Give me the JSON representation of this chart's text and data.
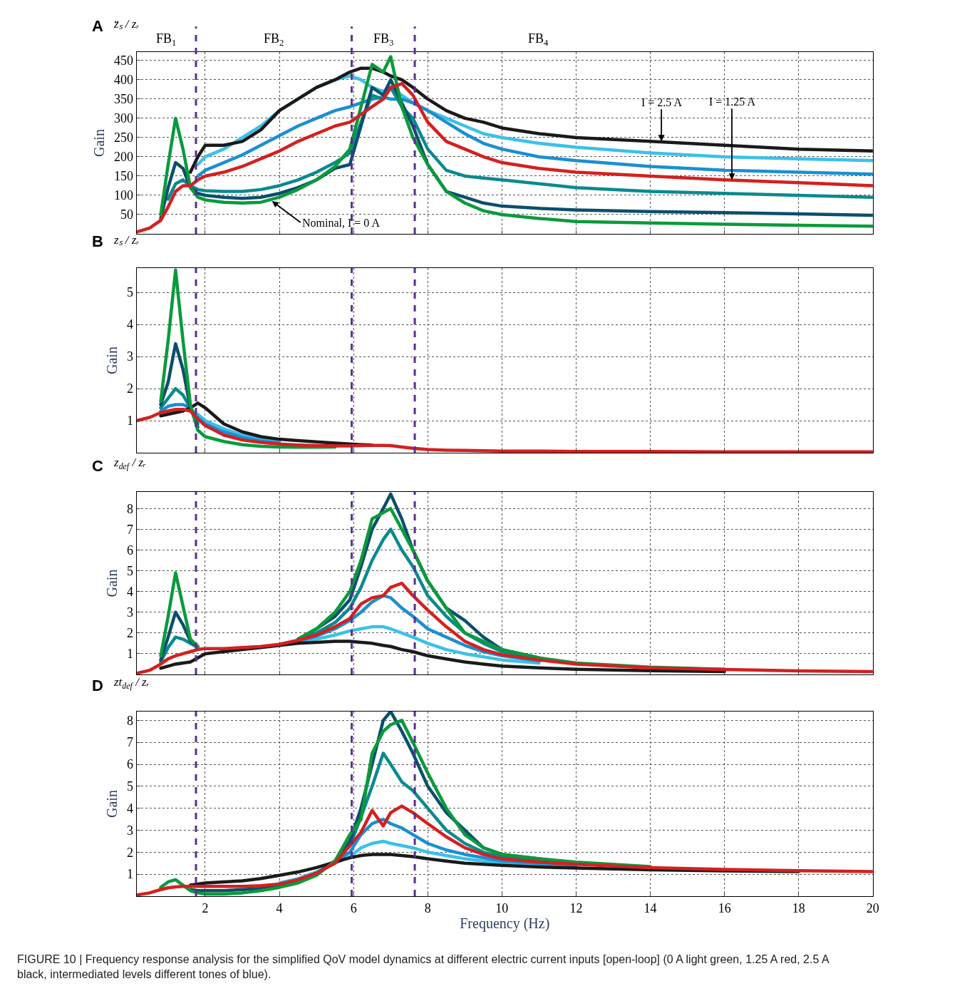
{
  "chart_data": [
    {
      "type": "line",
      "title": "A",
      "subtitle": "z̈ₛ / zᵣ",
      "ylabel": "Gain",
      "grid": true,
      "tick_labels": "y",
      "xlim": [
        0.15,
        20
      ],
      "xticks": [
        2,
        4,
        6,
        8,
        10,
        12,
        14,
        16,
        18,
        20
      ],
      "ylim": [
        0,
        472
      ],
      "yticks": [
        50,
        100,
        150,
        200,
        250,
        300,
        350,
        400,
        450
      ],
      "x": [
        0.15,
        0.5,
        0.8,
        1.0,
        1.2,
        1.4,
        1.6,
        1.8,
        2.0,
        2.5,
        3,
        3.5,
        4,
        4.5,
        5,
        5.5,
        5.9,
        6.2,
        6.5,
        6.8,
        7.0,
        7.3,
        7.6,
        8.0,
        8.5,
        9,
        9.5,
        10,
        11,
        12,
        14,
        16,
        18,
        20
      ],
      "series": [
        {
          "color": "#3cc0ea",
          "values": [
            null,
            null,
            null,
            null,
            null,
            null,
            null,
            180,
            200,
            220,
            250,
            280,
            320,
            350,
            380,
            400,
            410,
            400,
            380,
            370,
            380,
            360,
            340,
            320,
            300,
            280,
            260,
            250,
            235,
            225,
            210,
            200,
            195,
            190
          ]
        },
        {
          "color": "#1b8fd2",
          "values": [
            null,
            null,
            null,
            null,
            null,
            null,
            null,
            150,
            165,
            185,
            205,
            230,
            255,
            280,
            300,
            320,
            330,
            340,
            350,
            355,
            350,
            350,
            340,
            320,
            290,
            260,
            235,
            220,
            200,
            190,
            175,
            165,
            160,
            155
          ]
        },
        {
          "color": "#0a8a8f",
          "values": [
            null,
            null,
            null,
            90,
            130,
            140,
            125,
            115,
            112,
            110,
            110,
            115,
            125,
            140,
            160,
            185,
            210,
            290,
            360,
            350,
            380,
            330,
            300,
            220,
            165,
            150,
            145,
            140,
            130,
            120,
            110,
            105,
            100,
            95
          ]
        },
        {
          "color": "#0b4f6c",
          "values": [
            null,
            null,
            40,
            120,
            185,
            170,
            120,
            105,
            100,
            95,
            92,
            95,
            105,
            120,
            140,
            170,
            180,
            280,
            380,
            360,
            400,
            340,
            280,
            180,
            110,
            95,
            80,
            72,
            66,
            62,
            58,
            55,
            52,
            48
          ]
        },
        {
          "color": "#1a1a1a",
          "values": [
            null,
            null,
            null,
            null,
            null,
            null,
            160,
            200,
            230,
            230,
            240,
            270,
            320,
            350,
            380,
            400,
            420,
            430,
            430,
            420,
            410,
            400,
            380,
            350,
            320,
            300,
            290,
            275,
            260,
            250,
            240,
            230,
            220,
            215
          ]
        },
        {
          "color": "#0a9a3c",
          "values": [
            null,
            null,
            50,
            180,
            300,
            220,
            120,
            95,
            88,
            82,
            80,
            82,
            95,
            115,
            140,
            175,
            220,
            330,
            440,
            420,
            460,
            330,
            250,
            180,
            110,
            80,
            60,
            50,
            40,
            32,
            28,
            25,
            22,
            20
          ]
        },
        {
          "color": "#d42020",
          "values": [
            5,
            15,
            35,
            70,
            110,
            125,
            125,
            140,
            150,
            160,
            175,
            195,
            215,
            240,
            260,
            280,
            290,
            310,
            330,
            350,
            380,
            390,
            360,
            290,
            240,
            220,
            200,
            185,
            170,
            160,
            150,
            140,
            133,
            125
          ]
        }
      ],
      "ref_lines": [
        {
          "axis": "x",
          "value": 1.75,
          "color": "#5b2d91",
          "line_style": "dashed"
        },
        {
          "axis": "x",
          "value": 5.95,
          "color": "#5b2d91",
          "line_style": "dashed"
        },
        {
          "axis": "x",
          "value": 7.65,
          "color": "#5b2d91",
          "line_style": "dashed"
        }
      ],
      "annotations": [
        "FB$_{1}$",
        "FB$_{2}$",
        "FB$_{3}$",
        "FB$_{4}$",
        {
          "text": "I = 2.5 A",
          "x": 14.3,
          "y": 240
        },
        {
          "text": "I = 1.25 A",
          "x": 16.2,
          "y": 140
        },
        {
          "text": "Nominal, I = 0 A",
          "x": 3.8,
          "y": 85
        }
      ]
    },
    {
      "type": "line",
      "title": "B",
      "subtitle": "zₛ / zᵣ",
      "ylabel": "Gain",
      "grid": true,
      "tick_labels": "y",
      "xlim": [
        0.15,
        20
      ],
      "xticks": [
        2,
        4,
        6,
        8,
        10,
        12,
        14,
        16,
        18,
        20
      ],
      "ylim": [
        0,
        5.76
      ],
      "yticks": [
        1,
        2,
        3,
        4,
        5
      ],
      "x": [
        0.15,
        0.5,
        0.8,
        1.0,
        1.2,
        1.4,
        1.6,
        1.8,
        2.0,
        2.5,
        3,
        3.5,
        4,
        4.5,
        5,
        5.5,
        5.9,
        6.2,
        6.5,
        6.8,
        7.0,
        7.3,
        7.6,
        8.0,
        8.5,
        9,
        9.5,
        10,
        11,
        12,
        14,
        16,
        18,
        20
      ],
      "series": [
        {
          "color": "#3cc0ea",
          "values": [
            null,
            null,
            null,
            null,
            null,
            null,
            null,
            1.2,
            1.0,
            0.75,
            0.55,
            0.42,
            0.35,
            null,
            null,
            null,
            null,
            null,
            null,
            null,
            null,
            null,
            null,
            null,
            null,
            null,
            null,
            null,
            null,
            null,
            null,
            null,
            null,
            null
          ]
        },
        {
          "color": "#1b8fd2",
          "values": [
            null,
            null,
            1.3,
            1.45,
            1.5,
            1.5,
            1.4,
            1.1,
            0.9,
            0.65,
            0.48,
            0.37,
            0.3,
            null,
            null,
            null,
            null,
            null,
            null,
            null,
            null,
            null,
            null,
            null,
            null,
            null,
            null,
            null,
            null,
            null,
            null,
            null,
            null,
            null
          ]
        },
        {
          "color": "#0a8a8f",
          "values": [
            null,
            null,
            1.4,
            1.7,
            2.0,
            1.8,
            1.4,
            0.9,
            null,
            null,
            null,
            null,
            null,
            null,
            null,
            null,
            null,
            null,
            null,
            null,
            null,
            null,
            null,
            null,
            null,
            null,
            null,
            null,
            null,
            null,
            null,
            null,
            null,
            null
          ]
        },
        {
          "color": "#0b4f6c",
          "values": [
            null,
            null,
            1.5,
            2.2,
            3.4,
            2.6,
            1.4,
            0.8,
            null,
            null,
            null,
            null,
            null,
            null,
            null,
            null,
            null,
            null,
            null,
            null,
            null,
            null,
            null,
            null,
            null,
            null,
            null,
            null,
            null,
            null,
            null,
            null,
            null,
            null
          ]
        },
        {
          "color": "#1a1a1a",
          "values": [
            null,
            null,
            1.15,
            1.2,
            1.25,
            1.3,
            1.4,
            1.55,
            1.4,
            0.9,
            0.65,
            0.5,
            0.42,
            0.38,
            0.34,
            0.3,
            0.27,
            0.25,
            0.24,
            null,
            null,
            null,
            null,
            null,
            null,
            null,
            null,
            null,
            null,
            null,
            null,
            null,
            null,
            null
          ]
        },
        {
          "color": "#0a9a3c",
          "values": [
            null,
            null,
            1.6,
            3.5,
            5.7,
            3.5,
            1.5,
            0.7,
            0.5,
            0.35,
            0.25,
            0.2,
            0.18,
            0.17,
            0.17,
            0.18,
            null,
            null,
            null,
            null,
            null,
            null,
            null,
            null,
            null,
            null,
            null,
            null,
            null,
            null,
            null,
            null,
            null,
            null
          ]
        },
        {
          "color": "#d42020",
          "values": [
            1.0,
            1.1,
            1.25,
            1.3,
            1.35,
            1.35,
            1.3,
            1.05,
            0.85,
            0.55,
            0.4,
            0.32,
            0.27,
            0.24,
            0.22,
            0.21,
            0.21,
            0.22,
            0.23,
            0.23,
            0.22,
            0.18,
            0.14,
            0.1,
            0.08,
            0.07,
            0.06,
            0.05,
            0.05,
            0.04,
            0.04,
            0.03,
            0.03,
            0.03
          ]
        }
      ],
      "ref_lines": [
        {
          "axis": "x",
          "value": 1.75,
          "color": "#5b2d91",
          "line_style": "dashed"
        },
        {
          "axis": "x",
          "value": 5.95,
          "color": "#5b2d91",
          "line_style": "dashed"
        },
        {
          "axis": "x",
          "value": 7.65,
          "color": "#5b2d91",
          "line_style": "dashed"
        }
      ]
    },
    {
      "type": "line",
      "title": "C",
      "subtitle": "z$_{def}$ / zᵣ",
      "ylabel": "Gain",
      "grid": true,
      "tick_labels": "y",
      "xlim": [
        0.15,
        20
      ],
      "xticks": [
        2,
        4,
        6,
        8,
        10,
        12,
        14,
        16,
        18,
        20
      ],
      "ylim": [
        0,
        8.8
      ],
      "yticks": [
        1,
        2,
        3,
        4,
        5,
        6,
        7,
        8
      ],
      "x": [
        0.15,
        0.5,
        0.8,
        1.0,
        1.2,
        1.4,
        1.6,
        1.8,
        2.0,
        2.5,
        3,
        3.5,
        4,
        4.5,
        5,
        5.5,
        5.9,
        6.2,
        6.5,
        6.8,
        7.0,
        7.3,
        7.6,
        8.0,
        8.5,
        9,
        9.5,
        10,
        11,
        12,
        14,
        16,
        18,
        20
      ],
      "series": [
        {
          "color": "#3cc0ea",
          "values": [
            null,
            null,
            null,
            null,
            null,
            null,
            null,
            null,
            null,
            null,
            null,
            null,
            null,
            1.55,
            1.7,
            1.9,
            2.1,
            2.2,
            2.3,
            2.3,
            2.2,
            2.0,
            1.8,
            1.5,
            1.2,
            1.0,
            0.85,
            0.7,
            0.55,
            null,
            null,
            null,
            null,
            null
          ]
        },
        {
          "color": "#1b8fd2",
          "values": [
            null,
            null,
            null,
            null,
            null,
            null,
            null,
            null,
            null,
            null,
            null,
            null,
            null,
            1.6,
            1.85,
            2.2,
            2.6,
            3.0,
            3.5,
            3.8,
            3.7,
            3.2,
            2.8,
            2.2,
            1.8,
            1.4,
            1.1,
            0.9,
            0.65,
            null,
            null,
            null,
            null,
            null
          ]
        },
        {
          "color": "#0a8a8f",
          "values": [
            null,
            null,
            0.6,
            1.3,
            1.8,
            1.7,
            1.5,
            1.3,
            null,
            null,
            null,
            null,
            null,
            1.65,
            2.0,
            2.5,
            3.2,
            4.2,
            5.5,
            6.5,
            7.0,
            6.0,
            5.2,
            3.8,
            2.8,
            2.0,
            1.5,
            1.1,
            0.75,
            null,
            null,
            null,
            null,
            null
          ]
        },
        {
          "color": "#0b4f6c",
          "values": [
            null,
            null,
            0.7,
            1.8,
            3.0,
            2.4,
            1.6,
            1.35,
            null,
            null,
            null,
            null,
            null,
            1.7,
            2.2,
            2.8,
            3.6,
            5.2,
            7.0,
            8.0,
            8.7,
            7.5,
            6.0,
            4.5,
            3.2,
            2.6,
            1.8,
            1.2,
            0.8,
            null,
            null,
            null,
            null,
            null
          ]
        },
        {
          "color": "#1a1a1a",
          "values": [
            null,
            null,
            0.3,
            0.4,
            0.5,
            0.55,
            0.6,
            0.8,
            1.0,
            1.1,
            1.2,
            1.3,
            1.4,
            1.5,
            1.55,
            1.6,
            1.6,
            1.55,
            1.5,
            1.4,
            1.35,
            1.2,
            1.1,
            0.9,
            0.75,
            0.6,
            0.5,
            0.4,
            0.32,
            0.25,
            0.18,
            0.14,
            null,
            null
          ]
        },
        {
          "color": "#0a9a3c",
          "values": [
            null,
            null,
            0.9,
            2.8,
            4.9,
            3.3,
            1.7,
            1.35,
            null,
            null,
            null,
            null,
            null,
            1.7,
            2.2,
            3.0,
            4.0,
            5.5,
            7.5,
            7.8,
            8.0,
            7.0,
            6.0,
            4.5,
            3.2,
            2.0,
            1.6,
            1.2,
            0.8,
            0.55,
            0.35,
            0.25,
            null,
            null
          ]
        },
        {
          "color": "#d42020",
          "values": [
            0.05,
            0.2,
            0.5,
            0.75,
            0.9,
            1.0,
            1.1,
            1.2,
            1.25,
            1.25,
            1.3,
            1.35,
            1.45,
            1.65,
            1.9,
            2.3,
            2.7,
            3.4,
            3.7,
            3.8,
            4.2,
            4.4,
            3.8,
            3.1,
            2.3,
            1.6,
            1.2,
            0.95,
            0.7,
            0.5,
            0.32,
            0.24,
            0.17,
            0.14
          ]
        }
      ],
      "ref_lines": [
        {
          "axis": "x",
          "value": 1.75,
          "color": "#5b2d91",
          "line_style": "dashed"
        },
        {
          "axis": "x",
          "value": 5.95,
          "color": "#5b2d91",
          "line_style": "dashed"
        },
        {
          "axis": "x",
          "value": 7.65,
          "color": "#5b2d91",
          "line_style": "dashed"
        }
      ]
    },
    {
      "type": "line",
      "title": "D",
      "subtitle": "zt$_{def}$ / zᵣ",
      "ylabel": "Gain",
      "xlabel": "Frequency (Hz)",
      "grid": true,
      "xlim": [
        0.15,
        20
      ],
      "xticks": [
        2,
        4,
        6,
        8,
        10,
        12,
        14,
        16,
        18,
        20
      ],
      "ylim": [
        0,
        8.4
      ],
      "yticks": [
        1,
        2,
        3,
        4,
        5,
        6,
        7,
        8
      ],
      "x": [
        0.15,
        0.5,
        0.8,
        1.0,
        1.2,
        1.4,
        1.6,
        1.8,
        2.0,
        2.5,
        3,
        3.5,
        4,
        4.5,
        5,
        5.5,
        5.9,
        6.2,
        6.5,
        6.8,
        7.0,
        7.3,
        7.6,
        8.0,
        8.5,
        9,
        9.5,
        10,
        11,
        12,
        14,
        16,
        18,
        20
      ],
      "series": [
        {
          "color": "#3cc0ea",
          "values": [
            null,
            null,
            null,
            null,
            null,
            null,
            null,
            null,
            null,
            null,
            null,
            null,
            0.6,
            0.8,
            1.1,
            1.5,
            1.8,
            2.2,
            2.4,
            2.5,
            2.4,
            2.3,
            2.2,
            2.0,
            1.85,
            1.7,
            1.6,
            1.5,
            1.42,
            1.35,
            null,
            null,
            null,
            null
          ]
        },
        {
          "color": "#1b8fd2",
          "values": [
            null,
            null,
            null,
            null,
            null,
            null,
            null,
            null,
            null,
            null,
            null,
            null,
            0.55,
            0.75,
            1.05,
            1.55,
            2.0,
            2.8,
            3.3,
            3.5,
            3.3,
            3.1,
            2.8,
            2.4,
            2.1,
            1.9,
            1.75,
            1.6,
            1.5,
            1.4,
            null,
            null,
            null,
            null
          ]
        },
        {
          "color": "#0a8a8f",
          "values": [
            null,
            null,
            null,
            null,
            null,
            null,
            null,
            null,
            null,
            null,
            null,
            0.4,
            0.5,
            0.7,
            1.0,
            1.6,
            2.3,
            3.6,
            5.0,
            6.5,
            6.0,
            5.2,
            4.8,
            4.0,
            3.0,
            2.4,
            2.0,
            1.8,
            1.6,
            1.45,
            null,
            null,
            null,
            null
          ]
        },
        {
          "color": "#0b4f6c",
          "values": [
            null,
            null,
            null,
            null,
            null,
            null,
            0.3,
            0.25,
            0.25,
            0.25,
            0.3,
            0.35,
            0.45,
            0.65,
            1.0,
            1.6,
            2.5,
            4.0,
            6.0,
            8.0,
            8.4,
            7.5,
            6.5,
            5.0,
            3.8,
            3.0,
            2.2,
            1.9,
            1.7,
            1.5,
            null,
            null,
            null,
            null
          ]
        },
        {
          "color": "#1a1a1a",
          "values": [
            null,
            null,
            null,
            null,
            null,
            null,
            0.5,
            0.55,
            0.6,
            0.65,
            0.7,
            0.8,
            0.95,
            1.1,
            1.3,
            1.55,
            1.75,
            1.85,
            1.9,
            1.9,
            1.9,
            1.85,
            1.8,
            1.7,
            1.6,
            1.5,
            1.45,
            1.4,
            1.33,
            1.28,
            1.2,
            1.15,
            1.12,
            null
          ]
        },
        {
          "color": "#0a9a3c",
          "values": [
            null,
            null,
            0.4,
            0.65,
            0.75,
            0.5,
            0.25,
            0.15,
            0.1,
            0.1,
            0.15,
            0.25,
            0.4,
            0.6,
            0.95,
            1.6,
            2.8,
            3.5,
            6.5,
            7.5,
            7.8,
            8.0,
            7.0,
            5.6,
            4.0,
            2.8,
            2.2,
            1.9,
            1.7,
            1.55,
            1.35,
            null,
            null,
            null
          ]
        },
        {
          "color": "#d42020",
          "values": [
            0.05,
            0.15,
            0.3,
            0.38,
            0.42,
            0.45,
            0.45,
            0.45,
            0.45,
            0.45,
            0.45,
            0.48,
            0.55,
            0.75,
            1.05,
            1.5,
            2.3,
            2.9,
            3.9,
            3.2,
            3.8,
            4.1,
            3.8,
            3.3,
            2.7,
            2.2,
            1.9,
            1.7,
            1.55,
            1.45,
            1.3,
            1.22,
            1.16,
            1.12
          ]
        }
      ],
      "ref_lines": [
        {
          "axis": "x",
          "value": 1.75,
          "color": "#5b2d91",
          "line_style": "dashed"
        },
        {
          "axis": "x",
          "value": 5.95,
          "color": "#5b2d91",
          "line_style": "dashed"
        },
        {
          "axis": "x",
          "value": 7.65,
          "color": "#5b2d91",
          "line_style": "dashed"
        }
      ],
      "annotations": [
        "FIGURE 10 | Frequency response analysis for the simplified QoV model dynamics at different electric current inputs [open-loop] (0 A light green, 1.25 A red, 2.5 A\nblack, intermediated levels different tones of blue)."
      ]
    }
  ]
}
